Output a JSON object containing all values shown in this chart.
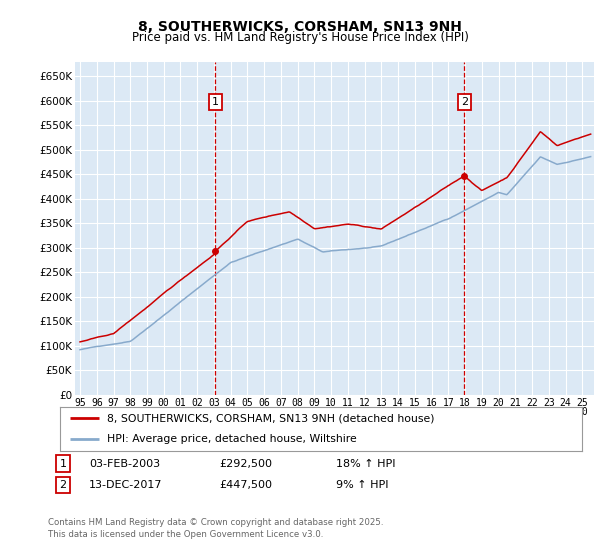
{
  "title": "8, SOUTHERWICKS, CORSHAM, SN13 9NH",
  "subtitle": "Price paid vs. HM Land Registry's House Price Index (HPI)",
  "ylabel_ticks": [
    "£0",
    "£50K",
    "£100K",
    "£150K",
    "£200K",
    "£250K",
    "£300K",
    "£350K",
    "£400K",
    "£450K",
    "£500K",
    "£550K",
    "£600K",
    "£650K"
  ],
  "ytick_vals": [
    0,
    50000,
    100000,
    150000,
    200000,
    250000,
    300000,
    350000,
    400000,
    450000,
    500000,
    550000,
    600000,
    650000
  ],
  "ylim": [
    0,
    680000
  ],
  "xlim_start": 1994.7,
  "xlim_end": 2025.7,
  "legend_line1": "8, SOUTHERWICKS, CORSHAM, SN13 9NH (detached house)",
  "legend_line2": "HPI: Average price, detached house, Wiltshire",
  "marker1_date": 2003.08,
  "marker1_price": 292500,
  "marker2_date": 2017.96,
  "marker2_price": 447500,
  "footer": "Contains HM Land Registry data © Crown copyright and database right 2025.\nThis data is licensed under the Open Government Licence v3.0.",
  "bg_color": "#dce9f5",
  "grid_color": "#ffffff",
  "red_line_color": "#cc0000",
  "blue_line_color": "#88aacc",
  "title_fontsize": 10,
  "subtitle_fontsize": 8.5
}
